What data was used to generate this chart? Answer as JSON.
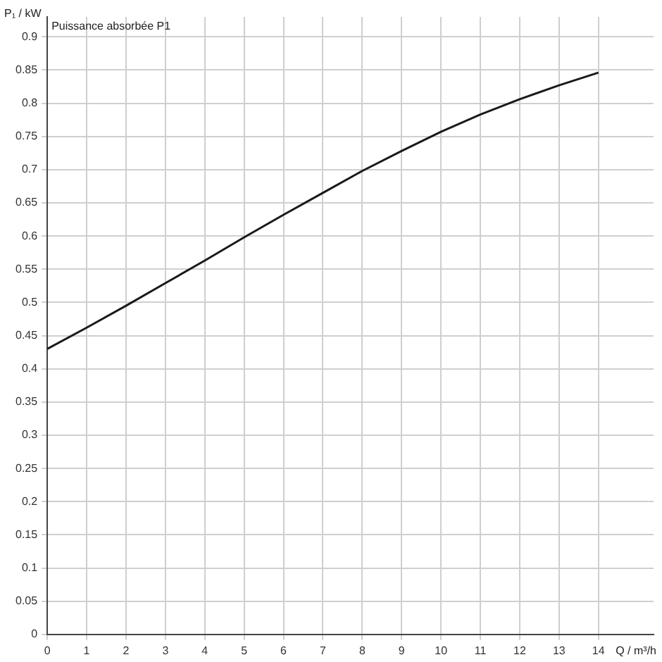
{
  "chart_data": {
    "type": "line",
    "title": "Puissance absorbée P1",
    "xlabel": "Q / m³/h",
    "ylabel": "P₁ / kW",
    "x": [
      0,
      1,
      2,
      3,
      4,
      5,
      6,
      7,
      8,
      9,
      10,
      11,
      12,
      13,
      14
    ],
    "series": [
      {
        "color": "#1a1a1a",
        "values": [
          0.43,
          0.462,
          0.495,
          0.529,
          0.563,
          0.598,
          0.632,
          0.665,
          0.698,
          0.728,
          0.757,
          0.783,
          0.806,
          0.827,
          0.846
        ]
      }
    ],
    "xlim": [
      0,
      15.4
    ],
    "xticks": [
      0,
      1,
      2,
      3,
      4,
      5,
      6,
      7,
      8,
      9,
      10,
      11,
      12,
      13,
      14
    ],
    "ylim": [
      0,
      0.93
    ],
    "yticks": [
      0,
      0.05,
      0.1,
      0.15,
      0.2,
      0.25,
      0.3,
      0.35,
      0.4,
      0.45,
      0.5,
      0.55,
      0.6,
      0.65,
      0.7,
      0.75,
      0.8,
      0.85,
      0.9
    ],
    "grid": true,
    "legend": false,
    "marker": "none",
    "line_style": "solid"
  }
}
